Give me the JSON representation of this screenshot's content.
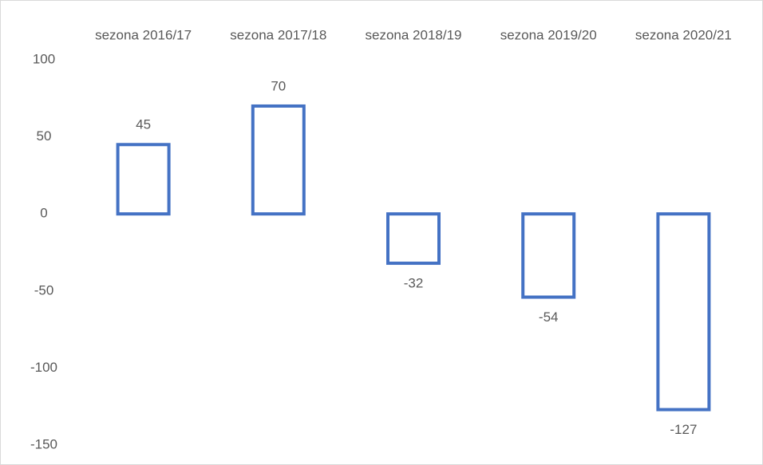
{
  "chart_data": {
    "type": "bar",
    "categories": [
      "sezona 2016/17",
      "sezona 2017/18",
      "sezona 2018/19",
      "sezona 2019/20",
      "sezona 2020/21"
    ],
    "values": [
      45,
      70,
      -32,
      -54,
      -127
    ],
    "color": "#4472c4",
    "ylim": [
      -150,
      100
    ],
    "yticks": [
      -150,
      -100,
      -50,
      0,
      50,
      100
    ],
    "grid": false
  }
}
